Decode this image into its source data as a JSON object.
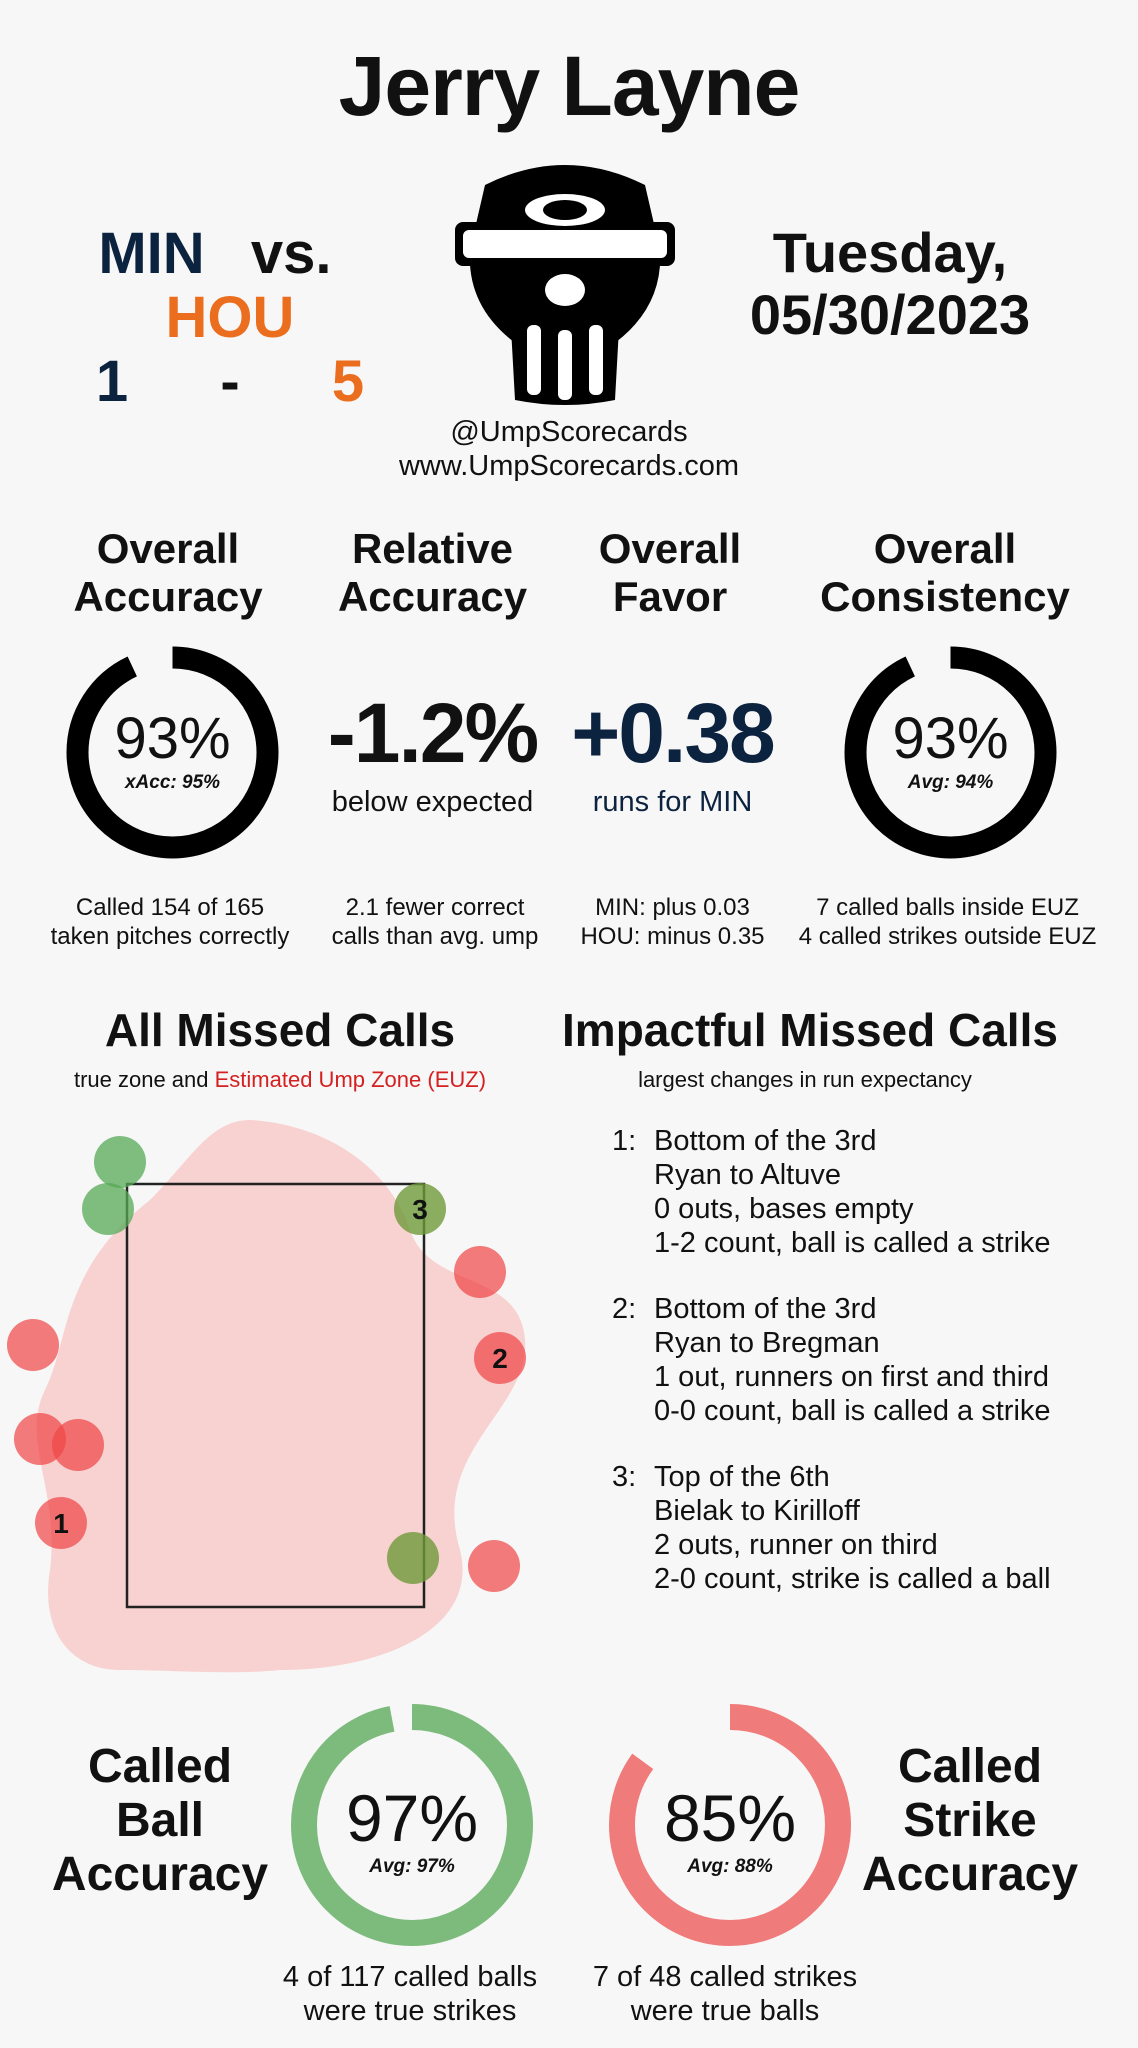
{
  "umpire": "Jerry Layne",
  "matchup": {
    "away": "MIN",
    "vs": "vs.",
    "home": "HOU",
    "away_score": "1",
    "dash": "-",
    "home_score": "5"
  },
  "date": {
    "weekday": "Tuesday,",
    "date": "05/30/2023"
  },
  "social": {
    "handle": "@UmpScorecards",
    "site": "www.UmpScorecards.com"
  },
  "colors": {
    "min": "#0c2340",
    "hou": "#eb6e1f",
    "green": "#7dbb7d",
    "red": "#f07b7b",
    "euz": "#d42020"
  },
  "stats": {
    "overall_accuracy": {
      "title1": "Overall",
      "title2": "Accuracy",
      "value": "93%",
      "sub": "xAcc: 95%",
      "foot1": "Called 154 of 165",
      "foot2": "taken pitches correctly",
      "pct": 93
    },
    "relative_accuracy": {
      "title1": "Relative",
      "title2": "Accuracy",
      "value": "-1.2%",
      "sub": "below expected",
      "foot1": "2.1 fewer correct",
      "foot2": "calls than avg. ump"
    },
    "overall_favor": {
      "title1": "Overall",
      "title2": "Favor",
      "value": "+0.38",
      "sub": "runs for MIN",
      "foot1": "MIN: plus 0.03",
      "foot2": "HOU: minus 0.35"
    },
    "overall_consistency": {
      "title1": "Overall",
      "title2": "Consistency",
      "value": "93%",
      "sub": "Avg: 94%",
      "foot1": "7 called balls inside EUZ",
      "foot2": "4 called strikes outside EUZ",
      "pct": 93
    }
  },
  "missed_calls": {
    "title": "All Missed Calls",
    "sub_plain": "true zone and",
    "sub_euz": "Estimated Ump Zone (EUZ)",
    "labels": [
      "1",
      "2",
      "3"
    ]
  },
  "impactful": {
    "title": "Impactful Missed Calls",
    "sub": "largest changes in run expectancy",
    "calls": [
      {
        "num": "1:",
        "l1": "Bottom of the 3rd",
        "l2": "Ryan to Altuve",
        "l3": "0 outs, bases empty",
        "l4": "1-2 count, ball is called a strike"
      },
      {
        "num": "2:",
        "l1": "Bottom of the 3rd",
        "l2": "Ryan to Bregman",
        "l3": "1 out, runners on first and third",
        "l4": "0-0 count, ball is called a strike"
      },
      {
        "num": "3:",
        "l1": "Top of the 6th",
        "l2": "Bielak to Kirilloff",
        "l3": "2 outs, runner on third",
        "l4": "2-0 count, strike is called a ball"
      }
    ]
  },
  "called_ball": {
    "t1": "Called",
    "t2": "Ball",
    "t3": "Accuracy",
    "value": "97%",
    "sub": "Avg: 97%",
    "foot1": "4 of 117 called balls",
    "foot2": "were true strikes",
    "pct": 97
  },
  "called_strike": {
    "t1": "Called",
    "t2": "Strike",
    "t3": "Accuracy",
    "value": "85%",
    "sub": "Avg: 88%",
    "foot1": "7 of 48 called strikes",
    "foot2": "were true balls",
    "pct": 85
  }
}
